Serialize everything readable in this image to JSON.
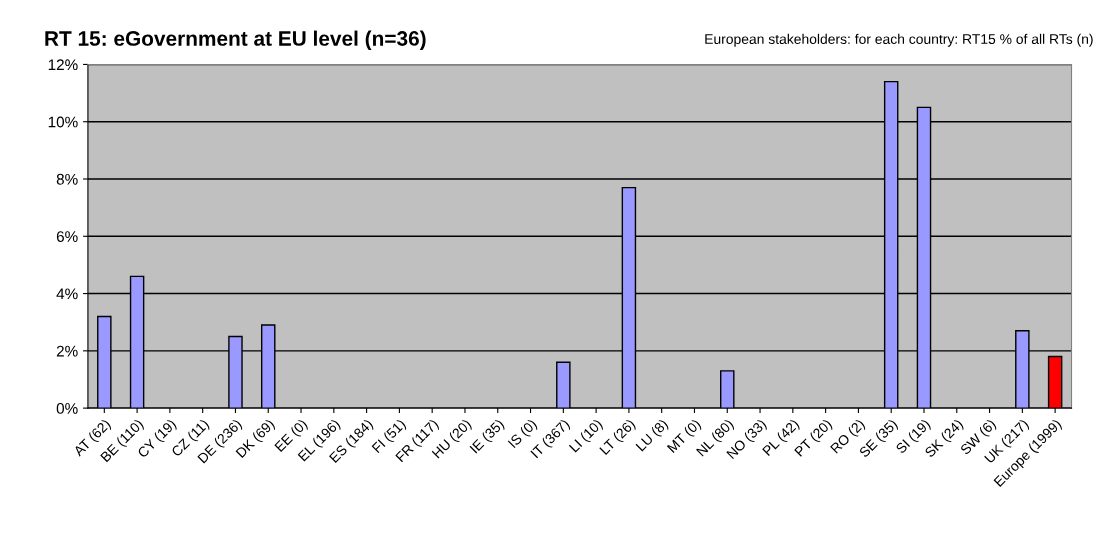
{
  "chart_data": {
    "type": "bar",
    "title": "RT 15: eGovernment at EU level (n=36)",
    "subtitle": "European stakeholders: for each country: RT15 % of all RTs (n)",
    "categories": [
      "AT (62)",
      "BE (110)",
      "CY (19)",
      "CZ (11)",
      "DE (236)",
      "DK (69)",
      "EE (0)",
      "EL (196)",
      "ES (184)",
      "FI (51)",
      "FR (117)",
      "HU (20)",
      "IE (35)",
      "IS (0)",
      "IT (367)",
      "LI (10)",
      "LT (26)",
      "LU (8)",
      "MT (0)",
      "NL (80)",
      "NO (33)",
      "PL (42)",
      "PT (20)",
      "RO (2)",
      "SE (35)",
      "SI (19)",
      "SK (24)",
      "SW (6)",
      "UK (217)",
      "Europe (1999)"
    ],
    "values": [
      3.2,
      4.6,
      0,
      0,
      2.5,
      2.9,
      0,
      0,
      0,
      0,
      0,
      0,
      0,
      0,
      1.6,
      0,
      7.7,
      0,
      0,
      1.3,
      0,
      0,
      0,
      0,
      11.4,
      10.5,
      0,
      0,
      2.7,
      1.8
    ],
    "colors": [
      "#9999ff",
      "#9999ff",
      "#9999ff",
      "#9999ff",
      "#9999ff",
      "#9999ff",
      "#9999ff",
      "#9999ff",
      "#9999ff",
      "#9999ff",
      "#9999ff",
      "#9999ff",
      "#9999ff",
      "#9999ff",
      "#9999ff",
      "#9999ff",
      "#9999ff",
      "#9999ff",
      "#9999ff",
      "#9999ff",
      "#9999ff",
      "#9999ff",
      "#9999ff",
      "#9999ff",
      "#9999ff",
      "#9999ff",
      "#9999ff",
      "#9999ff",
      "#9999ff",
      "#ff0000"
    ],
    "ylim": [
      0,
      12
    ],
    "yticks": [
      {
        "value": 0,
        "label": "0%"
      },
      {
        "value": 2,
        "label": "2%"
      },
      {
        "value": 4,
        "label": "4%"
      },
      {
        "value": 6,
        "label": "6%"
      },
      {
        "value": 8,
        "label": "8%"
      },
      {
        "value": 10,
        "label": "10%"
      },
      {
        "value": 12,
        "label": "12%"
      }
    ],
    "grid": "y",
    "legend": false
  }
}
